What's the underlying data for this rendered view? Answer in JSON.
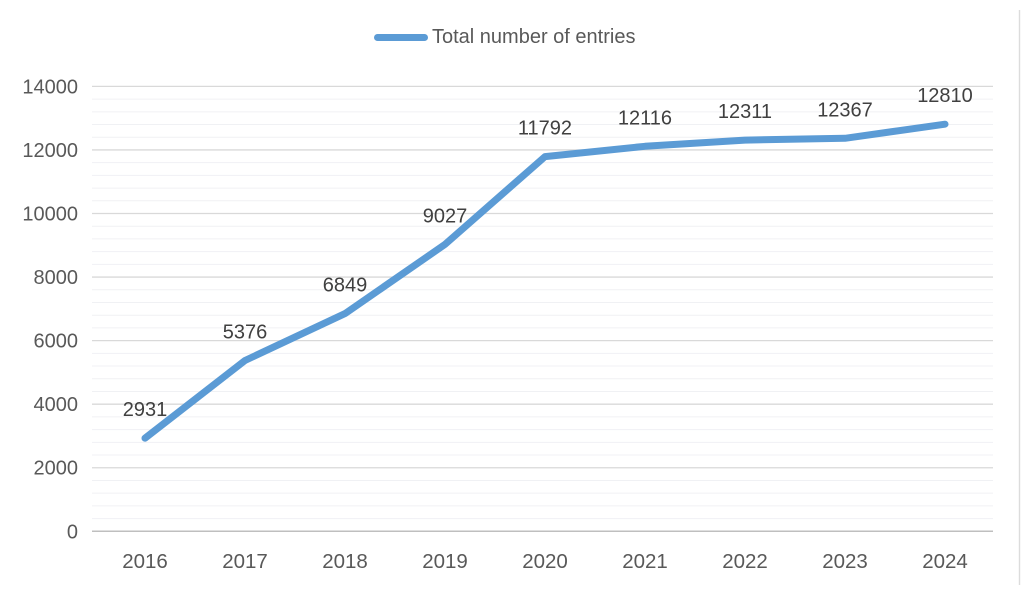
{
  "chart_data": {
    "type": "line",
    "title": "",
    "categories": [
      "2016",
      "2017",
      "2018",
      "2019",
      "2020",
      "2021",
      "2022",
      "2023",
      "2024"
    ],
    "series": [
      {
        "name": "Total number of entries",
        "values": [
          2931,
          5376,
          6849,
          9027,
          11792,
          12116,
          12311,
          12367,
          12810
        ],
        "color": "#5B9BD5"
      }
    ],
    "show_data_labels": true,
    "xlabel": "",
    "ylabel": "",
    "ylim": [
      0,
      14000
    ],
    "y_major_step": 2000,
    "y_minor_step": 400,
    "y_tick_labels": [
      "0",
      "2000",
      "4000",
      "6000",
      "8000",
      "10000",
      "12000",
      "14000"
    ],
    "legend_position": "top",
    "grid": {
      "horizontal_major": true,
      "horizontal_minor": true,
      "vertical": false
    }
  },
  "colors": {
    "series_line": "#5B9BD5",
    "major_gridline": "#D9D9D9",
    "minor_gridline": "#F0F1F4",
    "axis_line": "#BFBFBF",
    "tick_label": "#595959",
    "data_label": "#404040",
    "legend_text": "#595959",
    "right_edge_line": "#DCDCDC",
    "background": "#FFFFFF"
  }
}
